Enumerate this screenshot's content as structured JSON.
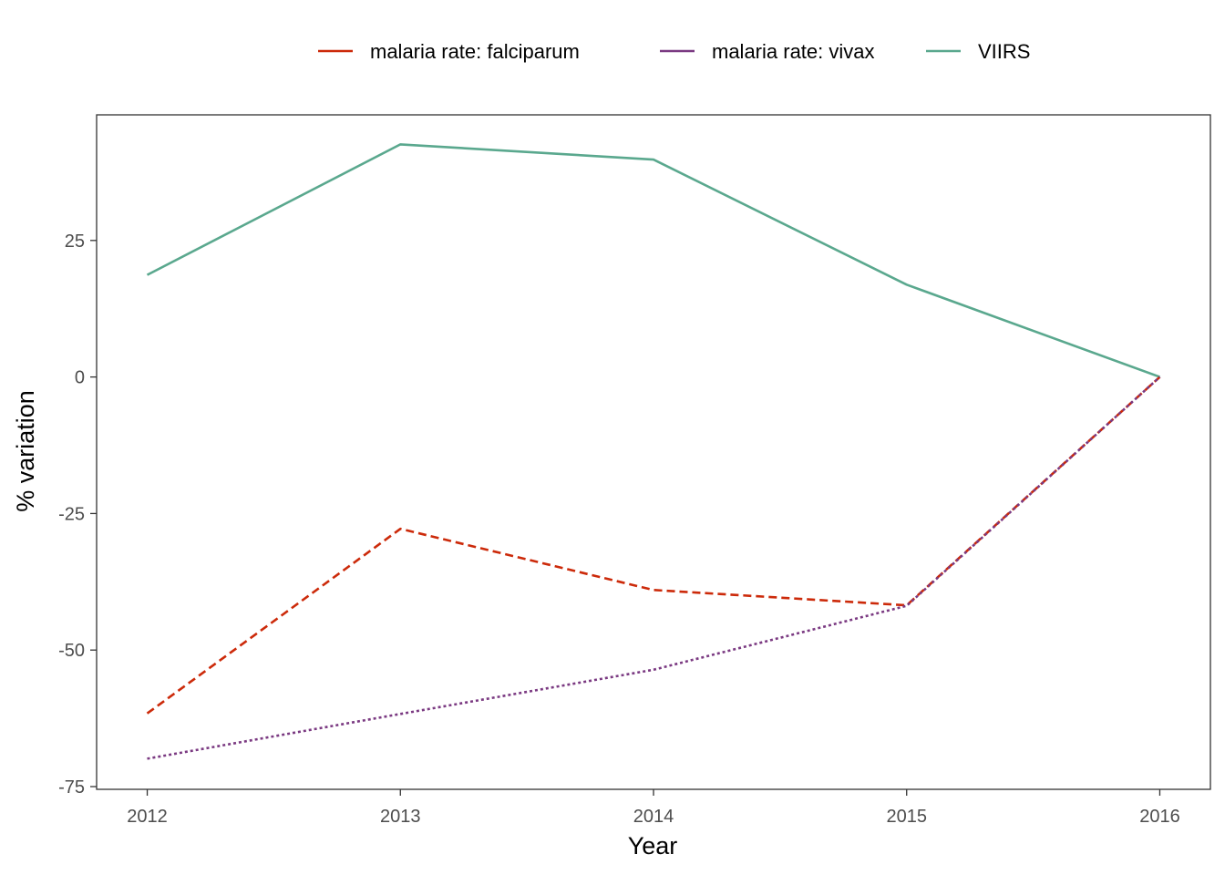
{
  "chart_data": {
    "type": "line",
    "x": [
      2012,
      2013,
      2014,
      2015,
      2016
    ],
    "x_ticks": [
      "2012",
      "2013",
      "2014",
      "2015",
      "2016"
    ],
    "y_ticks": [
      25,
      0,
      -25,
      -50,
      -75
    ],
    "y_tick_labels": [
      "25",
      "0",
      "-25",
      "-50",
      "-75"
    ],
    "xlim": [
      2011.8,
      2016.2
    ],
    "ylim": [
      -75.5,
      48
    ],
    "xlabel": "Year",
    "ylabel": "% variation",
    "grid": false,
    "legend_position": "top",
    "series": [
      {
        "name": "malaria rate: falciparum",
        "color": "#cc2a0a",
        "dash": "dashed",
        "values": [
          -61.6,
          -27.8,
          -39.0,
          -41.8,
          0
        ]
      },
      {
        "name": "malaria rate: vivax",
        "color": "#7b3a82",
        "dash": "dotted",
        "values": [
          -69.9,
          -61.7,
          -53.6,
          -41.9,
          0
        ]
      },
      {
        "name": "VIIRS",
        "color": "#5aa88e",
        "dash": "solid",
        "values": [
          18.7,
          42.6,
          39.8,
          16.9,
          0
        ]
      }
    ]
  }
}
